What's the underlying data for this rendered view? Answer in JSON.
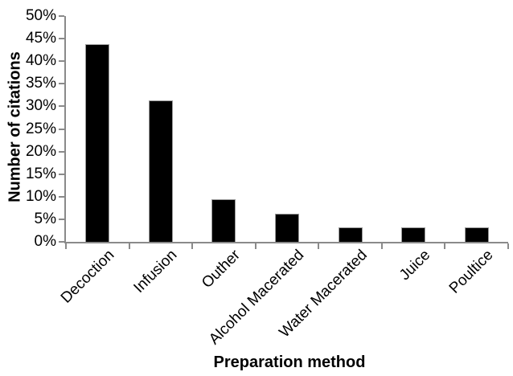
{
  "chart_data": {
    "type": "bar",
    "title": "",
    "xlabel": "Preparation method",
    "ylabel": "Number of citations",
    "categories": [
      "Decoction",
      "Infusion",
      "Outher",
      "Alcohol Macerated",
      "Water Macerated",
      "Juice",
      "Poultice"
    ],
    "values": [
      43.75,
      31.25,
      9.38,
      6.25,
      3.13,
      3.13,
      3.13
    ],
    "ylim": [
      0,
      50
    ],
    "ytick_step": 5,
    "ytick_labels": [
      "0%",
      "5%",
      "10%",
      "15%",
      "20%",
      "25%",
      "30%",
      "35%",
      "40%",
      "45%",
      "50%"
    ],
    "grid": false,
    "legend": "none",
    "bar_color": "#000000",
    "bar_border_color": "#9a9a9a",
    "axis_color": "#8a8a8a",
    "text_color": "#000000",
    "background_color": "#ffffff"
  }
}
